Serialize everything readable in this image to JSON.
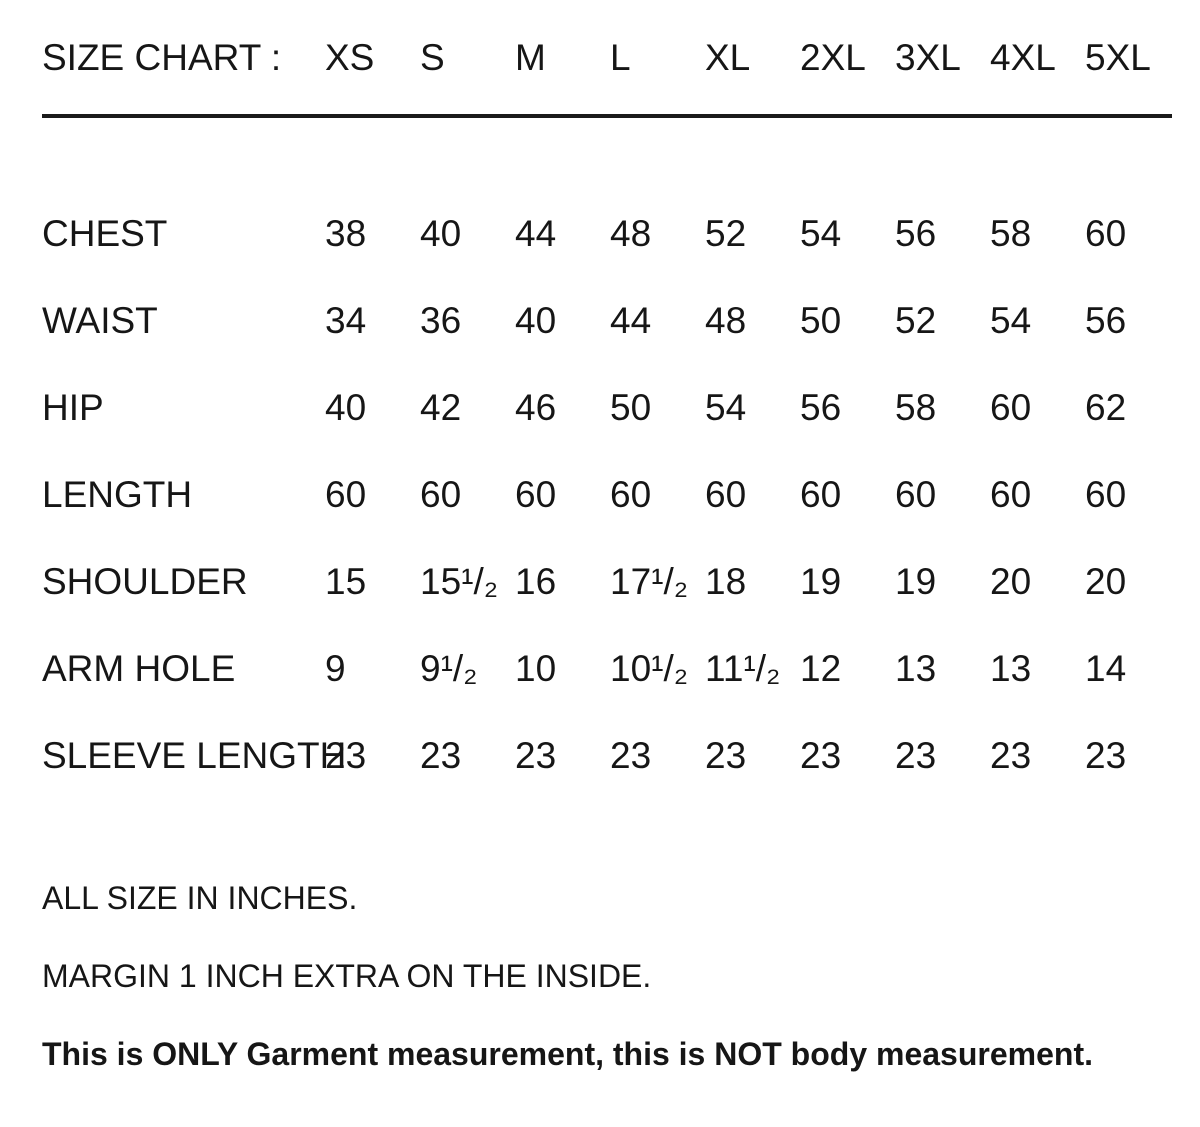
{
  "chart_data": {
    "type": "table",
    "title": "SIZE CHART :",
    "columns": [
      "XS",
      "S",
      "M",
      "L",
      "XL",
      "2XL",
      "3XL",
      "4XL",
      "5XL"
    ],
    "rows": [
      {
        "label": "CHEST",
        "values": [
          "38",
          "40",
          "44",
          "48",
          "52",
          "54",
          "56",
          "58",
          "60"
        ]
      },
      {
        "label": "WAIST",
        "values": [
          "34",
          "36",
          "40",
          "44",
          "48",
          "50",
          "52",
          "54",
          "56"
        ]
      },
      {
        "label": "HIP",
        "values": [
          "40",
          "42",
          "46",
          "50",
          "54",
          "56",
          "58",
          "60",
          "62"
        ]
      },
      {
        "label": "LENGTH",
        "values": [
          "60",
          "60",
          "60",
          "60",
          "60",
          "60",
          "60",
          "60",
          "60"
        ]
      },
      {
        "label": "SHOULDER",
        "values": [
          "15",
          "15¹/₂",
          "16",
          "17¹/₂",
          "18",
          "19",
          "19",
          "20",
          "20"
        ]
      },
      {
        "label": "ARM HOLE",
        "values": [
          "9",
          "9¹/₂",
          "10",
          "10¹/₂",
          "11¹/₂",
          "12",
          "13",
          "13",
          "14"
        ]
      },
      {
        "label": "SLEEVE LENGTH",
        "values": [
          "23",
          "23",
          "23",
          "23",
          "23",
          "23",
          "23",
          "23",
          "23"
        ]
      }
    ],
    "unit": "INCHES"
  },
  "notes": [
    {
      "text": "ALL SIZE IN INCHES.",
      "bold": false
    },
    {
      "text": "MARGIN 1 INCH EXTRA ON THE INSIDE.",
      "bold": false
    },
    {
      "text": "This is ONLY Garment measurement, this is NOT body measurement.",
      "bold": true
    }
  ],
  "colors": {
    "text": "#161616",
    "background": "#ffffff",
    "divider": "#1a1a1a"
  }
}
